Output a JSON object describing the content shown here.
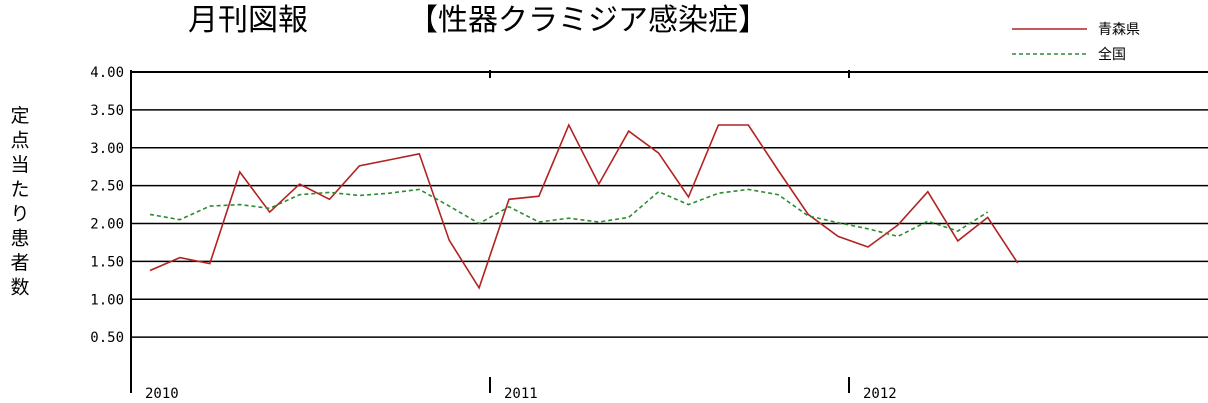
{
  "chart_data": {
    "type": "line",
    "title": "月刊図報",
    "subtitle": "【性器クラミジア感染症】",
    "ylabel": "定点当たり患者数",
    "ylim": [
      0,
      4.0
    ],
    "yticks": [
      "4.00",
      "3.50",
      "3.00",
      "2.50",
      "2.00",
      "1.50",
      "1.00",
      "0.50"
    ],
    "ytick_values": [
      4.0,
      3.5,
      3.0,
      2.5,
      2.0,
      1.5,
      1.0,
      0.5
    ],
    "year_labels": [
      "2010",
      "2011",
      "2012"
    ],
    "year_start_index": [
      0,
      12,
      24
    ],
    "months": 36,
    "grid": true,
    "legend_position": "top-right",
    "series": [
      {
        "name": "青森県",
        "color": "#b22222",
        "style": "solid",
        "values": [
          1.38,
          1.55,
          1.47,
          2.68,
          2.15,
          2.52,
          2.32,
          2.76,
          2.84,
          2.92,
          1.78,
          1.15,
          2.32,
          2.36,
          3.3,
          2.52,
          3.22,
          2.93,
          2.35,
          3.3,
          3.3,
          2.7,
          2.12,
          1.83,
          1.69,
          1.98,
          2.42,
          1.77,
          2.08,
          1.48
        ]
      },
      {
        "name": "全国",
        "color": "#2e8b2e",
        "style": "dashed",
        "values": [
          2.12,
          2.05,
          2.23,
          2.25,
          2.2,
          2.38,
          2.41,
          2.37,
          2.4,
          2.45,
          2.23,
          2.0,
          2.22,
          2.02,
          2.07,
          2.02,
          2.08,
          2.42,
          2.25,
          2.4,
          2.45,
          2.38,
          2.1,
          2.01,
          1.93,
          1.83,
          2.03,
          1.9,
          2.15
        ]
      }
    ]
  }
}
